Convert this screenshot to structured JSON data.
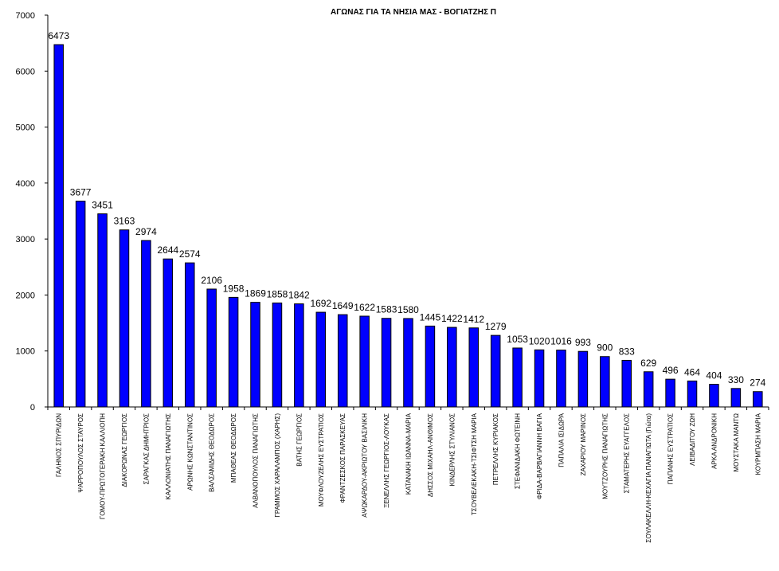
{
  "chart_data": {
    "type": "bar",
    "title": "ΑΓΩΝΑΣ ΓΙΑ ΤΑ ΝΗΣΙΑ ΜΑΣ - ΒΟΓΙΑΤΖΗΣ Π",
    "xlabel": "",
    "ylabel": "",
    "ylim": [
      0,
      7000
    ],
    "yticks": [
      0,
      1000,
      2000,
      3000,
      4000,
      5000,
      6000,
      7000
    ],
    "grid": false,
    "legend": "none",
    "bar_color": "#0000ff",
    "categories": [
      "ΓΑΛΗΝΟΣ ΣΠΥΡΙΔΩΝ",
      "ΨΑΡΡΟΠΟΥΛΟΣ ΣΤΑΥΡΟΣ",
      "ΓΟΜΟΥ-ΠΡΩΤΟΓΕΡΑΚΗ ΚΑΛΛΙΟΠΗ",
      "ΔΙΑΚΟΡΩΝΑΣ ΓΕΩΡΓΙΟΣ",
      "ΣΑΡΑΓΚΑΣ ΔΗΜΗΤΡΙΟΣ",
      "ΚΑΛΛΟΝΙΑΤΗΣ ΠΑΝΑΓΙΩΤΗΣ",
      "ΑΡΩΝΗΣ ΚΩΝΣΤΑΝΤΙΝΟΣ",
      "ΒΑΛΣΑΜΙΔΗΣ ΘΕΟΔΩΡΟΣ",
      "ΜΠΑΘΕΑΣ ΘΕΟΔΩΡΟΣ",
      "ΑΛΒΑΝΟΠΟΥΛΟΣ ΠΑΝΑΓΙΩΤΗΣ",
      "ΓΡΑΜΜΟΣ ΧΑΡΑΛΑΜΠΟΣ (ΧΑΡΗΣ)",
      "ΒΑΤΗΣ ΓΕΩΡΓΙΟΣ",
      "ΜΟΥΦΛΟΥΖΕΛΗΣ ΕΥΣΤΡΑΤΙΟΣ",
      "ΦΡΑΝΤΖΕΣΚΟΣ ΠΑΡΑΣΚΕΥΑΣ",
      "ΑΨΩΚΑΡΔΟΥ-ΑΚΡΙΩΤΟΥ ΒΑΣΙΛΙΚΗ",
      "ΞΕΝΕΛΛΗΣ ΓΕΩΡΓΙΟΣ-ΛΟΥΚΑΣ",
      "ΚΑΤΑΝΑΚΗ ΙΩΑΝΝΑ-ΜΑΡΙΑ",
      "ΔΗΣΣΟΣ ΜΙΧΑΗΛ-ΑΝΘΙΜΟΣ",
      "ΚΙΝΔΕΡΛΗΣ ΣΤΥΛΙΑΝΟΣ",
      "ΤΣΟΥΒΕΛΕΚΑΚΗ-ΤΣΙΦΤΣΗ ΜΑΡΙΑ",
      "ΠΕΤΡΕΛΛΗΣ ΚΥΡΙΑΚΟΣ",
      "ΣΤΕΦΑΝΙΔΑΚΗ ΦΩΤΕΙΝΗ",
      "ΦΡΙΔΑ-ΒΑΡΒΑΓΙΑΝΝΗ ΒΑΓΙΑ",
      "ΠΑΠΑΛΙΑ ΙΣΙΔΩΡΑ",
      "ΖΑΧΑΡΙΟΥ ΜΑΡΙΝΟΣ",
      "ΜΟΥΤΖΟΥΡΗΣ ΠΑΝΑΓΙΩΤΗΣ",
      "ΣΤΑΜΑΤΕΡΗΣ ΕΥΑΓΓΕΛΟΣ",
      "ΣΟΥΛΑΚΕΛΛΗ-ΚΕΧΑΓΙΑ ΠΑΝΑΓΙΩΤΑ (Γιώτα)",
      "ΠΑΠΑΝΗΣ ΕΥΣΤΡΑΤΙΟΣ",
      "ΛΕΙΒΑΔΙΤΟΥ ΖΩΗ",
      "ΑΡΚΑ ΑΝΔΡΟΝΙΚΗ",
      "ΜΟΥΣΤΑΚΑ ΜΑΝΤΩ",
      "ΚΟΥΡΜΠΑΣΗ ΜΑΡΙΑ"
    ],
    "values": [
      6473,
      3677,
      3451,
      3163,
      2974,
      2644,
      2574,
      2106,
      1958,
      1869,
      1858,
      1842,
      1692,
      1649,
      1622,
      1583,
      1580,
      1445,
      1422,
      1412,
      1279,
      1053,
      1020,
      1016,
      993,
      900,
      833,
      629,
      496,
      464,
      404,
      330,
      274
    ],
    "data_labels": [
      "6473",
      "3677",
      "3451",
      "3163",
      "2974",
      "2644",
      "2574",
      "2106",
      "1958",
      "1869",
      "1858",
      "1842",
      "1692",
      "1649",
      "1622",
      "1583",
      "1580",
      "1445",
      "1422",
      "1412",
      "1279",
      "1053",
      "1020",
      "1016",
      "993",
      "900",
      "833",
      "629",
      "496",
      "464",
      "404",
      "330",
      "274"
    ]
  }
}
